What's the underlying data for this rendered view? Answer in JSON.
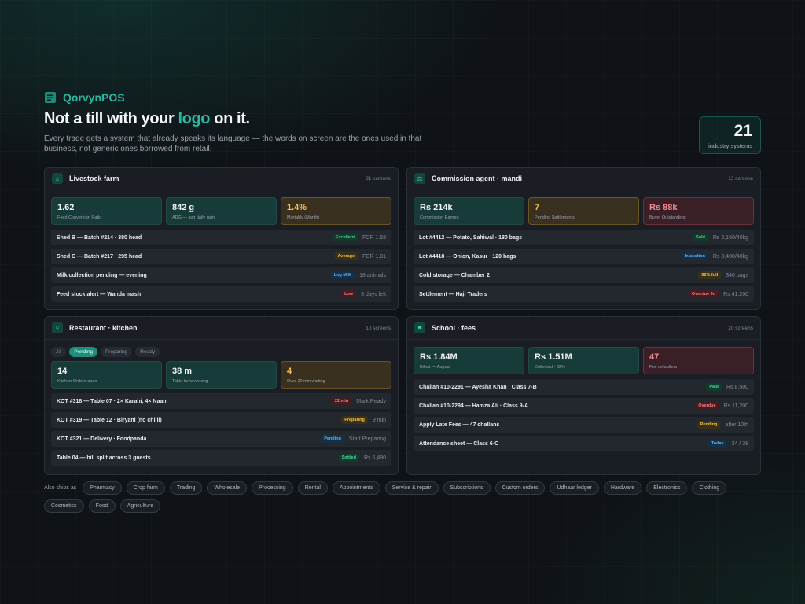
{
  "brand": {
    "name": "QorvynPOS"
  },
  "hero": {
    "title_pre": "Not a till with your ",
    "title_accent": "logo",
    "title_post": " on it.",
    "subtitle": "Every trade gets a system that already speaks its language — the words on screen are the ones used in that business, not generic ones borrowed from retail."
  },
  "stat": {
    "value": "21",
    "label": "industry systems"
  },
  "panels": [
    {
      "title": "Livestock farm",
      "screens": "21 screens",
      "icon": "barn-icon",
      "metrics": [
        {
          "value": "1.62",
          "label": "Feed Conversion Ratio",
          "tone": "teal"
        },
        {
          "value": "842 g",
          "label": "ADG — avg daily gain",
          "tone": "teal"
        },
        {
          "value": "1.4%",
          "label": "Mortality (Month)",
          "tone": "warn"
        }
      ],
      "rows": [
        {
          "text": "Shed B — Batch #214 · 380 head",
          "tag": "Excellent",
          "tone": "green",
          "meta": "FCR 1.58"
        },
        {
          "text": "Shed C — Batch #217 · 295 head",
          "tag": "Average",
          "tone": "amber",
          "meta": "FCR 1.81"
        },
        {
          "text": "Milk collection pending — evening",
          "tag": "Log Milk",
          "tone": "blue",
          "meta": "18 animals"
        },
        {
          "text": "Feed stock alert — Wanda mash",
          "tag": "Low",
          "tone": "red",
          "meta": "3 days left"
        }
      ]
    },
    {
      "title": "Commission agent · mandi",
      "screens": "12 screens",
      "icon": "scale-icon",
      "metrics": [
        {
          "value": "Rs 214k",
          "label": "Commission Earned",
          "tone": "teal"
        },
        {
          "value": "7",
          "label": "Pending Settlements",
          "tone": "warn"
        },
        {
          "value": "Rs 88k",
          "label": "Buyer Outstanding",
          "tone": "bad"
        }
      ],
      "rows": [
        {
          "text": "Lot #4412 — Potato, Sahiwal · 180 bags",
          "tag": "Sold",
          "tone": "green",
          "meta": "Rs 2,150/40kg"
        },
        {
          "text": "Lot #4418 — Onion, Kasur · 120 bags",
          "tag": "In auction",
          "tone": "blue",
          "meta": "Rs 3,400/40kg"
        },
        {
          "text": "Cold storage — Chamber 2",
          "tag": "62% full",
          "tone": "amber",
          "meta": "340 bags"
        },
        {
          "text": "Settlement — Haji Traders",
          "tag": "Overdue 6d",
          "tone": "red",
          "meta": "Rs 41,200"
        }
      ]
    },
    {
      "title": "Restaurant · kitchen",
      "screens": "10 screens",
      "icon": "utensils-icon",
      "chips": [
        {
          "label": "All",
          "active": false
        },
        {
          "label": "Pending",
          "active": true
        },
        {
          "label": "Preparing",
          "active": false
        },
        {
          "label": "Ready",
          "active": false
        }
      ],
      "metrics": [
        {
          "value": "14",
          "label": "Kitchen Orders open",
          "tone": "teal"
        },
        {
          "value": "38 m",
          "label": "Table turnover avg",
          "tone": "teal"
        },
        {
          "value": "4",
          "label": "Over 20 min waiting",
          "tone": "warn"
        }
      ],
      "rows": [
        {
          "text": "KOT #318 — Table 07 · 2× Karahi, 4× Naan",
          "tag": "22 min",
          "tone": "red",
          "meta": "Mark Ready"
        },
        {
          "text": "KOT #319 — Table 12 · Biryani (no chilli)",
          "tag": "Preparing",
          "tone": "amber",
          "meta": "9 min"
        },
        {
          "text": "KOT #321 — Delivery · Foodpanda",
          "tag": "Pending",
          "tone": "blue",
          "meta": "Start Preparing"
        },
        {
          "text": "Table 04 — bill split across 3 guests",
          "tag": "Settled",
          "tone": "green",
          "meta": "Rs 6,480"
        }
      ]
    },
    {
      "title": "School · fees",
      "screens": "20 screens",
      "icon": "graduation-cap-icon",
      "metrics": [
        {
          "value": "Rs 1.84M",
          "label": "Billed — August",
          "tone": "teal"
        },
        {
          "value": "Rs 1.51M",
          "label": "Collected · 82%",
          "tone": "teal"
        },
        {
          "value": "47",
          "label": "Fee defaulters",
          "tone": "bad"
        }
      ],
      "rows": [
        {
          "text": "Challan #10-2291 — Ayesha Khan · Class 7-B",
          "tag": "Paid",
          "tone": "green",
          "meta": "Rs 8,500"
        },
        {
          "text": "Challan #10-2294 — Hamza Ali · Class 9-A",
          "tag": "Overdue",
          "tone": "red",
          "meta": "Rs 11,200"
        },
        {
          "text": "Apply Late Fees — 47 challans",
          "tag": "Pending",
          "tone": "amber",
          "meta": "after 10th"
        },
        {
          "text": "Attendance sheet — Class 6-C",
          "tag": "Today",
          "tone": "blue",
          "meta": "34 / 38"
        }
      ]
    }
  ],
  "ships": {
    "label": "Also ships as",
    "items": [
      "Pharmacy",
      "Crop farm",
      "Trading",
      "Wholesale",
      "Processing",
      "Rental",
      "Appointments",
      "Service & repair",
      "Subscriptions",
      "Custom orders",
      "Udhaar ledger",
      "Hardware",
      "Electronics",
      "Clothing",
      "Cosmetics",
      "Food",
      "Agriculture"
    ]
  },
  "colors": {
    "accent": "#2bb8a0",
    "background": "#0f1216",
    "panel": "#1a1e24"
  }
}
